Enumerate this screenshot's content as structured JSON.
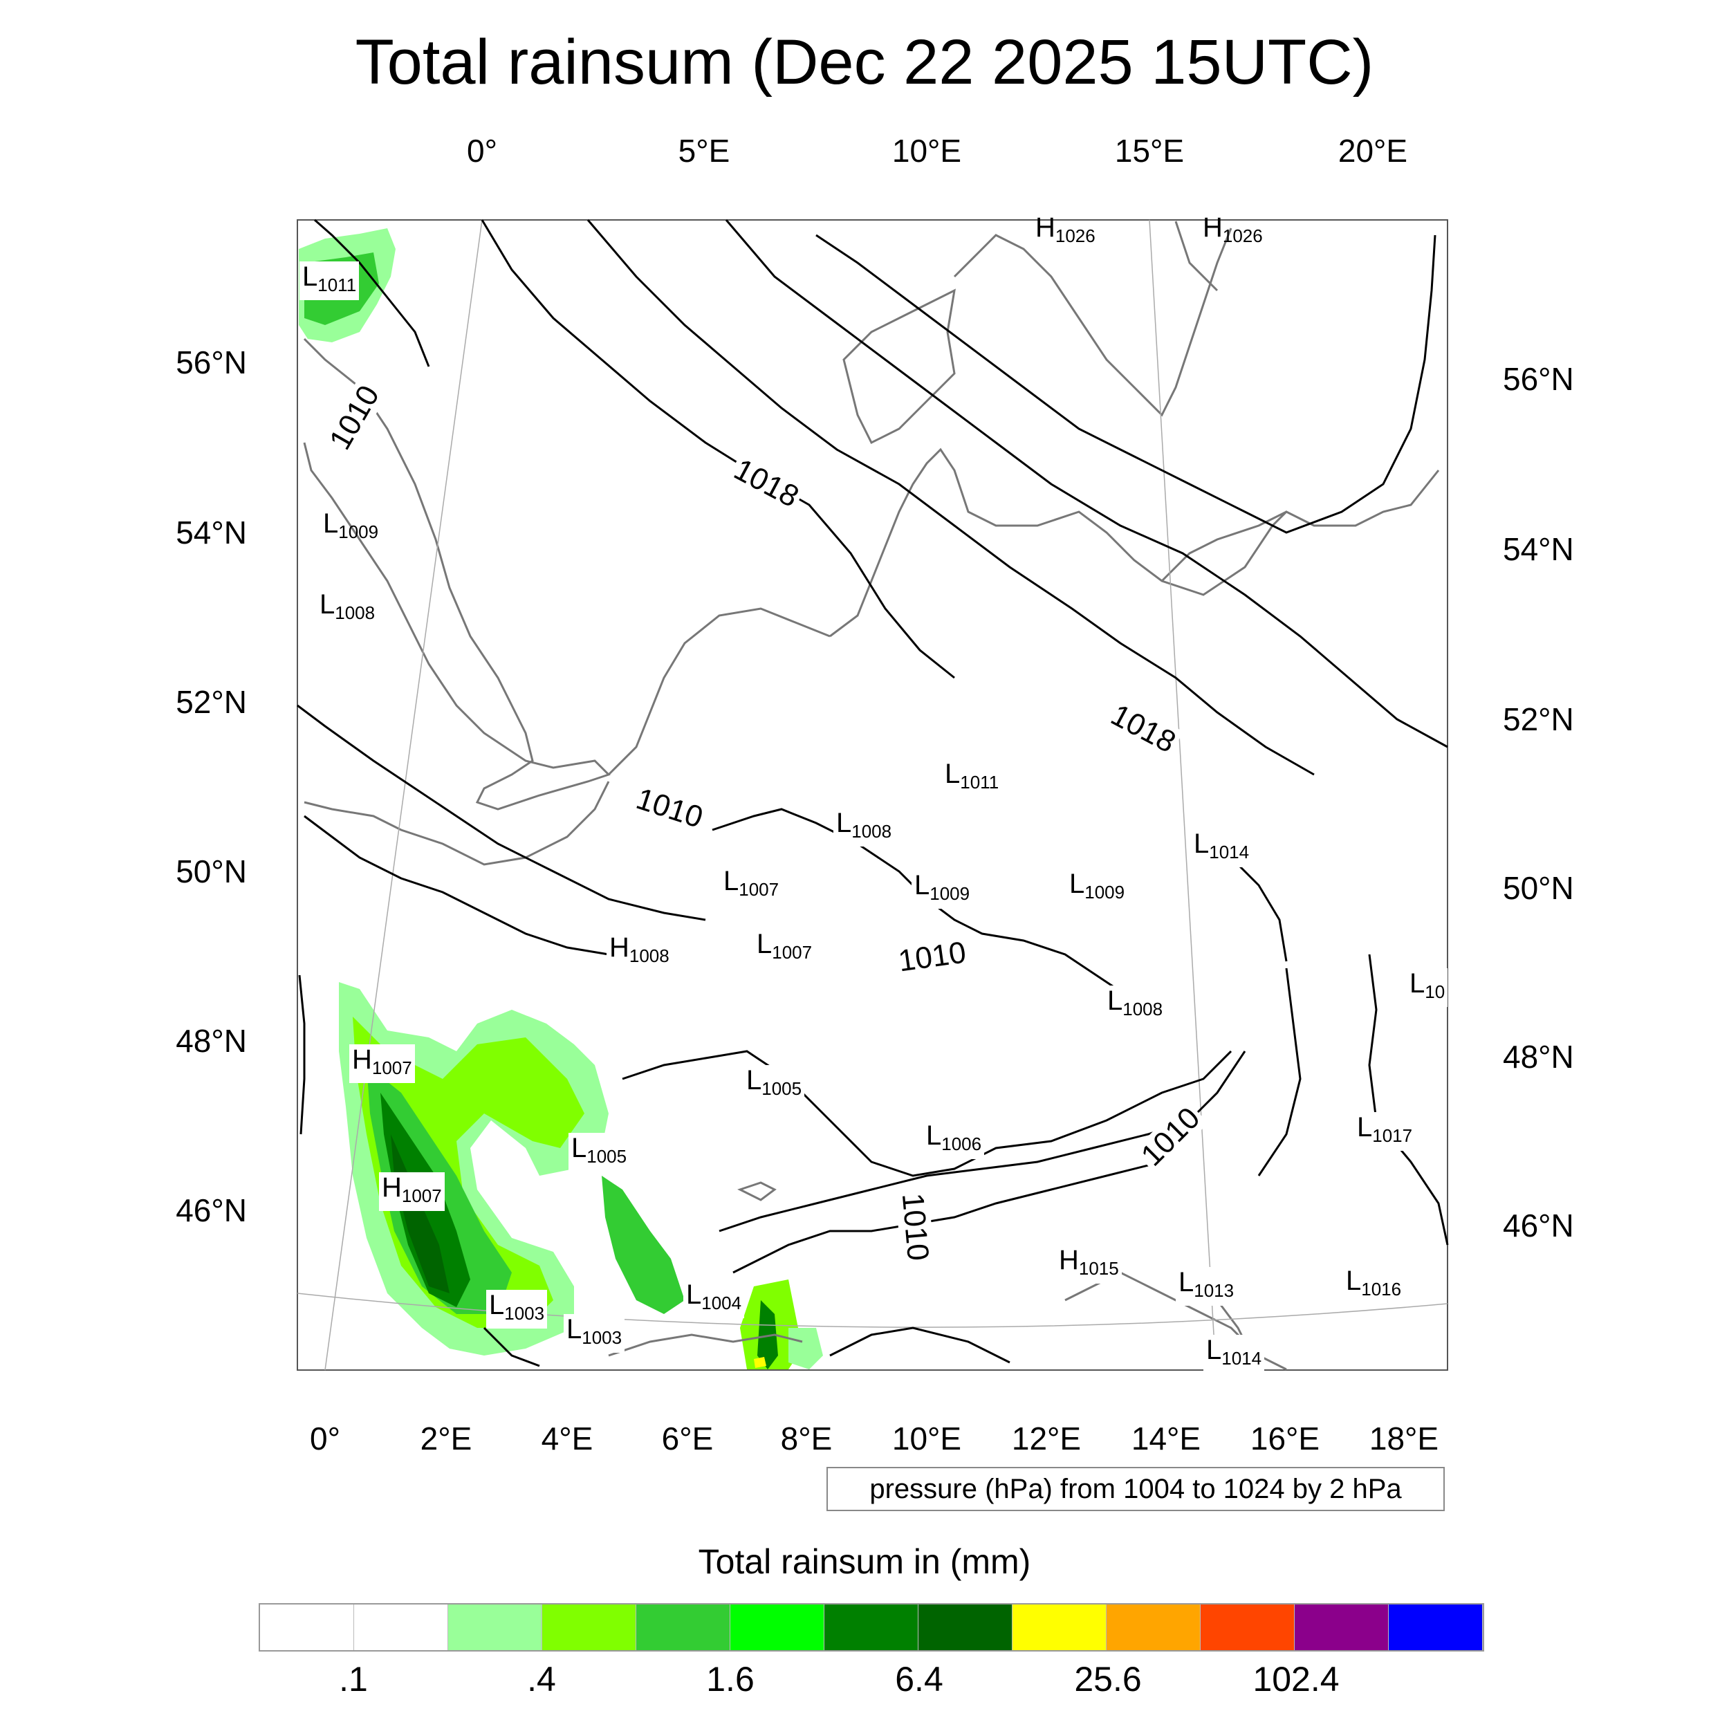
{
  "title": "Total rainsum (Dec 22 2025 15UTC)",
  "top_ticks": [
    "0°",
    "5°E",
    "10°E",
    "15°E",
    "20°E"
  ],
  "bottom_ticks": [
    "0°",
    "2°E",
    "4°E",
    "6°E",
    "8°E",
    "10°E",
    "12°E",
    "14°E",
    "16°E",
    "18°E"
  ],
  "left_ticks": [
    "56°N",
    "54°N",
    "52°N",
    "50°N",
    "48°N",
    "46°N"
  ],
  "right_ticks": [
    "56°N",
    "54°N",
    "52°N",
    "50°N",
    "48°N",
    "46°N"
  ],
  "pressure_note": "pressure (hPa) from 1004 to 1024 by 2 hPa",
  "colorbar": {
    "title": "Total rainsum in (mm)",
    "labels": [
      ".1",
      ".4",
      "1.6",
      "6.4",
      "25.6",
      "102.4"
    ],
    "colors": [
      "#ffffff",
      "#ffffff",
      "#99ff99",
      "#80ff00",
      "#33cc33",
      "#00ff00",
      "#008000",
      "#006400",
      "#ffff00",
      "#ffa500",
      "#ff4500",
      "#8b008b",
      "#0000ff"
    ]
  },
  "contour_labels": [
    "1010",
    "1018",
    "1018",
    "1010",
    "1010",
    "1010",
    "1010"
  ],
  "pressure_centers": [
    {
      "type": "L",
      "value": "1011"
    },
    {
      "type": "L",
      "value": "1009"
    },
    {
      "type": "L",
      "value": "1008"
    },
    {
      "type": "H",
      "value": "1026"
    },
    {
      "type": "H",
      "value": "1026"
    },
    {
      "type": "L",
      "value": "1011"
    },
    {
      "type": "L",
      "value": "1008"
    },
    {
      "type": "L",
      "value": "1014"
    },
    {
      "type": "L",
      "value": "1007"
    },
    {
      "type": "L",
      "value": "1009"
    },
    {
      "type": "L",
      "value": "1009"
    },
    {
      "type": "H",
      "value": "1008"
    },
    {
      "type": "L",
      "value": "1007"
    },
    {
      "type": "L",
      "value": "1008"
    },
    {
      "type": "L",
      "value": "10"
    },
    {
      "type": "H",
      "value": "1007"
    },
    {
      "type": "L",
      "value": "1005"
    },
    {
      "type": "L",
      "value": "1005"
    },
    {
      "type": "L",
      "value": "1006"
    },
    {
      "type": "L",
      "value": "1017"
    },
    {
      "type": "H",
      "value": "1007"
    },
    {
      "type": "H",
      "value": "1015"
    },
    {
      "type": "L",
      "value": "1003"
    },
    {
      "type": "L",
      "value": "1003"
    },
    {
      "type": "L",
      "value": "1004"
    },
    {
      "type": "L",
      "value": "1013"
    },
    {
      "type": "L",
      "value": "1016"
    },
    {
      "type": "L",
      "value": "1014"
    }
  ]
}
